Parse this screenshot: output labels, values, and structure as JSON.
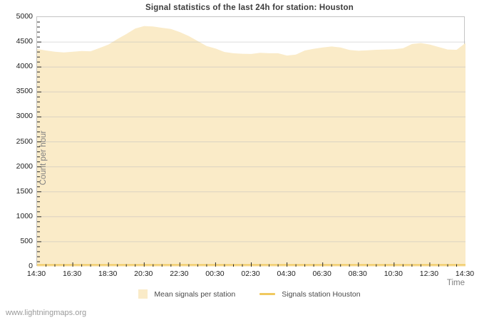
{
  "page": {
    "watermark": "www.lightningmaps.org"
  },
  "chart_data": {
    "type": "area",
    "title": "Signal statistics of the last 24h for station: Houston",
    "xlabel": "Time",
    "ylabel": "Count per hour",
    "ylim": [
      0,
      5000
    ],
    "y_tick_step": 500,
    "y_minor_tick_step": 100,
    "x_major_tick_interval_hours": 2,
    "x_minor_tick_interval_hours": 0.5,
    "x_tick_labels": [
      "14:30",
      "16:30",
      "18:30",
      "20:30",
      "22:30",
      "00:30",
      "02:30",
      "04:30",
      "06:30",
      "08:30",
      "10:30",
      "12:30",
      "14:30"
    ],
    "grid": true,
    "legend_position": "bottom",
    "x": [
      "14:30",
      "15:00",
      "15:30",
      "16:00",
      "16:30",
      "17:00",
      "17:30",
      "18:00",
      "18:30",
      "19:00",
      "19:30",
      "20:00",
      "20:30",
      "21:00",
      "21:30",
      "22:00",
      "22:30",
      "23:00",
      "23:30",
      "00:00",
      "00:30",
      "01:00",
      "01:30",
      "02:00",
      "02:30",
      "03:00",
      "03:30",
      "04:00",
      "04:30",
      "05:00",
      "05:30",
      "06:00",
      "06:30",
      "07:00",
      "07:30",
      "08:00",
      "08:30",
      "09:00",
      "09:30",
      "10:00",
      "10:30",
      "11:00",
      "11:30",
      "12:00",
      "12:30",
      "13:00",
      "13:30",
      "14:00",
      "14:30"
    ],
    "series": [
      {
        "name": "Mean signals per station",
        "type": "area",
        "color": "#FAEBC8",
        "values": [
          4360,
          4330,
          4305,
          4290,
          4305,
          4320,
          4315,
          4380,
          4450,
          4560,
          4660,
          4770,
          4820,
          4810,
          4785,
          4760,
          4700,
          4620,
          4520,
          4420,
          4370,
          4300,
          4275,
          4265,
          4260,
          4285,
          4275,
          4275,
          4230,
          4250,
          4330,
          4365,
          4390,
          4410,
          4390,
          4340,
          4325,
          4335,
          4345,
          4350,
          4355,
          4375,
          4460,
          4480,
          4450,
          4400,
          4350,
          4345,
          4480
        ]
      },
      {
        "name": "Signals station Houston",
        "type": "line",
        "color": "#F0C95F",
        "values": [
          0,
          0,
          0,
          0,
          0,
          0,
          0,
          0,
          0,
          0,
          0,
          0,
          0,
          0,
          0,
          0,
          0,
          0,
          0,
          0,
          0,
          0,
          0,
          0,
          0,
          0,
          0,
          0,
          0,
          0,
          0,
          0,
          0,
          0,
          0,
          0,
          0,
          0,
          0,
          0,
          0,
          0,
          0,
          0,
          0,
          0,
          0,
          0,
          0
        ]
      }
    ]
  }
}
